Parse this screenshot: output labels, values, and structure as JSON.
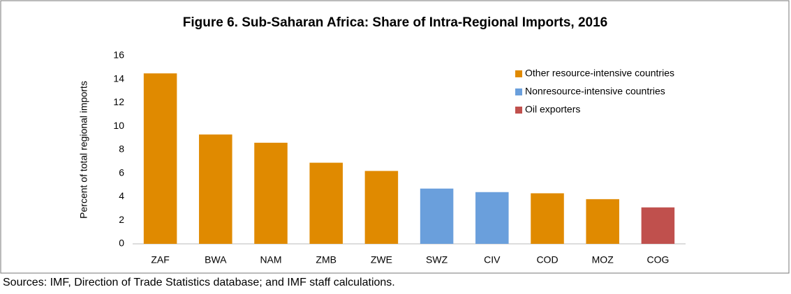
{
  "chart_data": {
    "type": "bar",
    "title": "Figure 6. Sub-Saharan Africa: Share of Intra-Regional Imports, 2016",
    "y_label": "Percent of total regional imports",
    "source": "Sources: IMF, Direction of Trade Statistics database; and IMF staff calculations.",
    "categories": [
      "ZAF",
      "BWA",
      "NAM",
      "ZMB",
      "ZWE",
      "SWZ",
      "CIV",
      "COD",
      "MOZ",
      "COG"
    ],
    "series": [
      {
        "name": "Other resource-intensive countries",
        "color": "#e08a00",
        "values": [
          14.5,
          9.3,
          8.6,
          6.9,
          6.2,
          null,
          null,
          4.3,
          3.8,
          null
        ]
      },
      {
        "name": "Nonresource-intensive countries",
        "color": "#6a9fdc",
        "values": [
          null,
          null,
          null,
          null,
          null,
          4.7,
          4.4,
          null,
          null,
          null
        ]
      },
      {
        "name": "Oil exporters",
        "color": "#c0504d",
        "values": [
          null,
          null,
          null,
          null,
          null,
          null,
          null,
          null,
          null,
          3.1
        ]
      }
    ],
    "ylim": [
      0,
      16
    ],
    "yticks": [
      0,
      2,
      4,
      6,
      8,
      10,
      12,
      14,
      16
    ],
    "grid": false,
    "legend": "top-right"
  }
}
